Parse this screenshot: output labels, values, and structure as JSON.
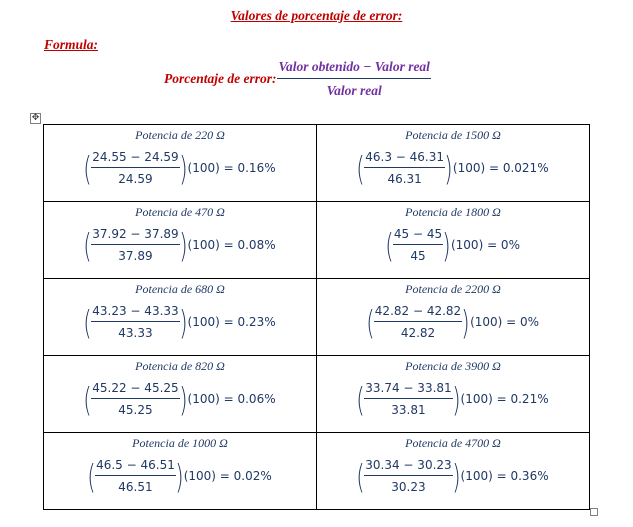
{
  "document": {
    "heading": "Valores de porcentaje de error:",
    "formula_label": "Formula:",
    "main_formula": {
      "lhs": "Porcentaje de error",
      "colon": ":",
      "numerator": "Valor obtenido − Valor real",
      "denominator": "Valor real"
    },
    "table_move_handle": "✥",
    "rows": [
      {
        "left": {
          "title": "Potencia de 220 Ω",
          "num": "24.55 − 24.59",
          "den": "24.59",
          "result": "(100) = 0.16%"
        },
        "right": {
          "title": "Potencia de 1500 Ω",
          "num": "46.3 − 46.31",
          "den": "46.31",
          "result": "(100) = 0.021%"
        }
      },
      {
        "left": {
          "title": "Potencia de 470 Ω",
          "num": "37.92 − 37.89",
          "den": "37.89",
          "result": "(100) = 0.08%"
        },
        "right": {
          "title": "Potencia de 1800 Ω",
          "num": "45 − 45",
          "den": "45",
          "result": "(100) = 0%"
        }
      },
      {
        "left": {
          "title": "Potencia de 680 Ω",
          "num": "43.23 − 43.33",
          "den": "43.33",
          "result": "(100) = 0.23%"
        },
        "right": {
          "title": "Potencia de 2200 Ω",
          "num": "42.82 − 42.82",
          "den": "42.82",
          "result": "(100) = 0%"
        }
      },
      {
        "left": {
          "title": "Potencia de 820 Ω",
          "num": "45.22 − 45.25",
          "den": "45.25",
          "result": "(100) = 0.06%"
        },
        "right": {
          "title": "Potencia de 3900 Ω",
          "num": "33.74 − 33.81",
          "den": "33.81",
          "result": "(100) = 0.21%"
        }
      },
      {
        "left": {
          "title": "Potencia de 1000 Ω",
          "num": "46.5 − 46.51",
          "den": "46.51",
          "result": "(100) = 0.02%"
        },
        "right": {
          "title": "Potencia de 4700 Ω",
          "num": "30.34 − 30.23",
          "den": "30.23",
          "result": "(100) = 0.36%"
        }
      }
    ]
  }
}
